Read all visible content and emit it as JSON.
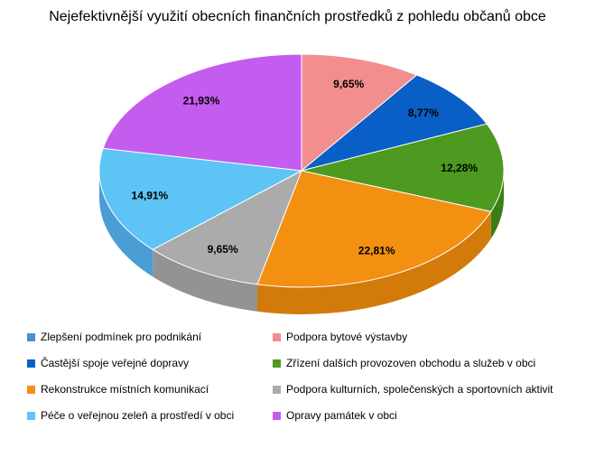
{
  "chart_data": {
    "type": "pie",
    "title": "Nejefektivnější využití obecních finančních prostředků z pohledu občanů obce",
    "legend_position": "bottom",
    "slices": [
      {
        "label": "Podpora bytové výstavby",
        "value": 9.65,
        "display": "9,65%",
        "color": "#f28e8e",
        "side_color": "#d87a7a"
      },
      {
        "label": "Častější spoje veřejné dopravy",
        "value": 8.77,
        "display": "8,77%",
        "color": "#0a5fc7",
        "side_color": "#084e9f"
      },
      {
        "label": "Zřízení dalších provozoven obchodu a služeb v obci",
        "value": 12.28,
        "display": "12,28%",
        "color": "#4c9a1f",
        "side_color": "#3d7d18"
      },
      {
        "label": "Rekonstrukce místních komunikací",
        "value": 22.81,
        "display": "22,81%",
        "color": "#f39012",
        "side_color": "#d27b0b"
      },
      {
        "label": "Podpora kulturních, společenských a sportovních aktivit",
        "value": 9.65,
        "display": "9,65%",
        "color": "#ababab",
        "side_color": "#939393"
      },
      {
        "label": "Péče o veřejnou zeleň a prostředí v obci",
        "value": 14.91,
        "display": "14,91%",
        "color": "#5ec4f5",
        "side_color": "#4a9ed6"
      },
      {
        "label": "Opravy památek v obci",
        "value": 21.93,
        "display": "21,93%",
        "color": "#c45cf0",
        "side_color": "#a24acb"
      }
    ],
    "legend_entries": [
      {
        "label": "Zlepšení podmínek pro podnikání",
        "color": "#4a90d0"
      },
      {
        "label": "Podpora bytové výstavby",
        "color": "#f28e8e"
      },
      {
        "label": "Častější spoje veřejné dopravy",
        "color": "#0a5fc7"
      },
      {
        "label": "Zřízení dalších provozoven obchodu a služeb v obci",
        "color": "#4c9a1f"
      },
      {
        "label": "Rekonstrukce místních komunikací",
        "color": "#f39012"
      },
      {
        "label": "Podpora kulturních, společenských a sportovních aktivit",
        "color": "#ababab"
      },
      {
        "label": "Péče o veřejnou zeleň a prostředí v obci",
        "color": "#5ec4f5"
      },
      {
        "label": "Opravy památek v obci",
        "color": "#c45cf0"
      }
    ]
  }
}
